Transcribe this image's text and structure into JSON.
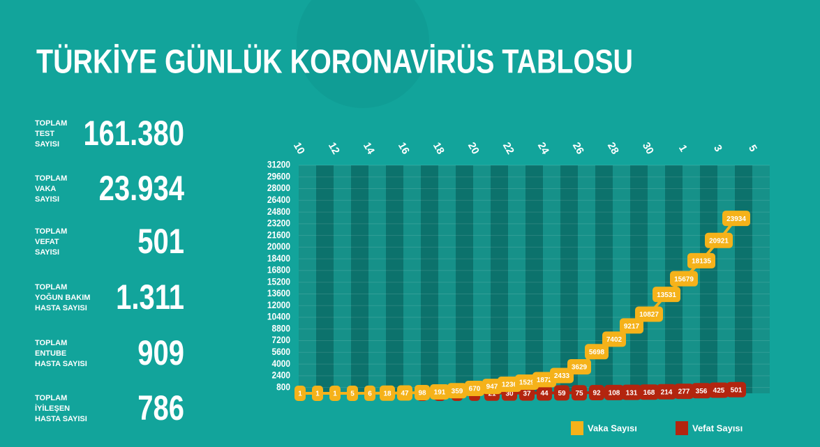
{
  "title": "TÜRKİYE GÜNLÜK KORONAVİRÜS TABLOSU",
  "stats": [
    {
      "label_lines": [
        "TOPLAM",
        "TEST",
        "SAYISI"
      ],
      "value": "161.380"
    },
    {
      "label_lines": [
        "TOPLAM",
        "VAKA",
        "SAYISI"
      ],
      "value": "23.934"
    },
    {
      "label_lines": [
        "TOPLAM",
        "VEFAT",
        "SAYISI"
      ],
      "value": "501"
    },
    {
      "label_lines": [
        "TOPLAM",
        "YOĞUN BAKIM",
        "HASTA SAYISI"
      ],
      "value": "1.311"
    },
    {
      "label_lines": [
        "TOPLAM",
        "ENTUBE",
        "HASTA SAYISI"
      ],
      "value": "909"
    },
    {
      "label_lines": [
        "TOPLAM",
        "İYİLEŞEN",
        "HASTA SAYISI"
      ],
      "value": "786"
    }
  ],
  "chart_data": {
    "type": "line",
    "categories": [
      "10",
      null,
      "12",
      null,
      "14",
      null,
      "16",
      null,
      "18",
      null,
      "20",
      null,
      "22",
      null,
      "24",
      null,
      "26",
      null,
      "28",
      null,
      "30",
      null,
      "1",
      null,
      "3",
      null,
      "5"
    ],
    "series": [
      {
        "name": "Vaka Sayısı",
        "color": "#f5b21a",
        "values": [
          1,
          1,
          1,
          5,
          6,
          18,
          47,
          98,
          191,
          359,
          670,
          947,
          1236,
          1529,
          1872,
          2433,
          3629,
          5698,
          7402,
          9217,
          10827,
          13531,
          15679,
          18135,
          20921,
          23934,
          null
        ]
      },
      {
        "name": "Vefat Sayısı",
        "color": "#b3250f",
        "values": [
          null,
          null,
          null,
          null,
          null,
          null,
          null,
          1,
          2,
          3,
          9,
          21,
          30,
          37,
          44,
          59,
          75,
          92,
          108,
          131,
          168,
          214,
          277,
          356,
          425,
          501,
          null
        ]
      }
    ],
    "ylim": [
      0,
      31200
    ],
    "yticks": [
      800,
      2400,
      4000,
      5600,
      7200,
      8800,
      10400,
      12000,
      13600,
      15200,
      16800,
      18400,
      20000,
      21600,
      23200,
      24800,
      26400,
      28000,
      29600,
      31200
    ],
    "grid": true,
    "legend": "bottom-right"
  }
}
